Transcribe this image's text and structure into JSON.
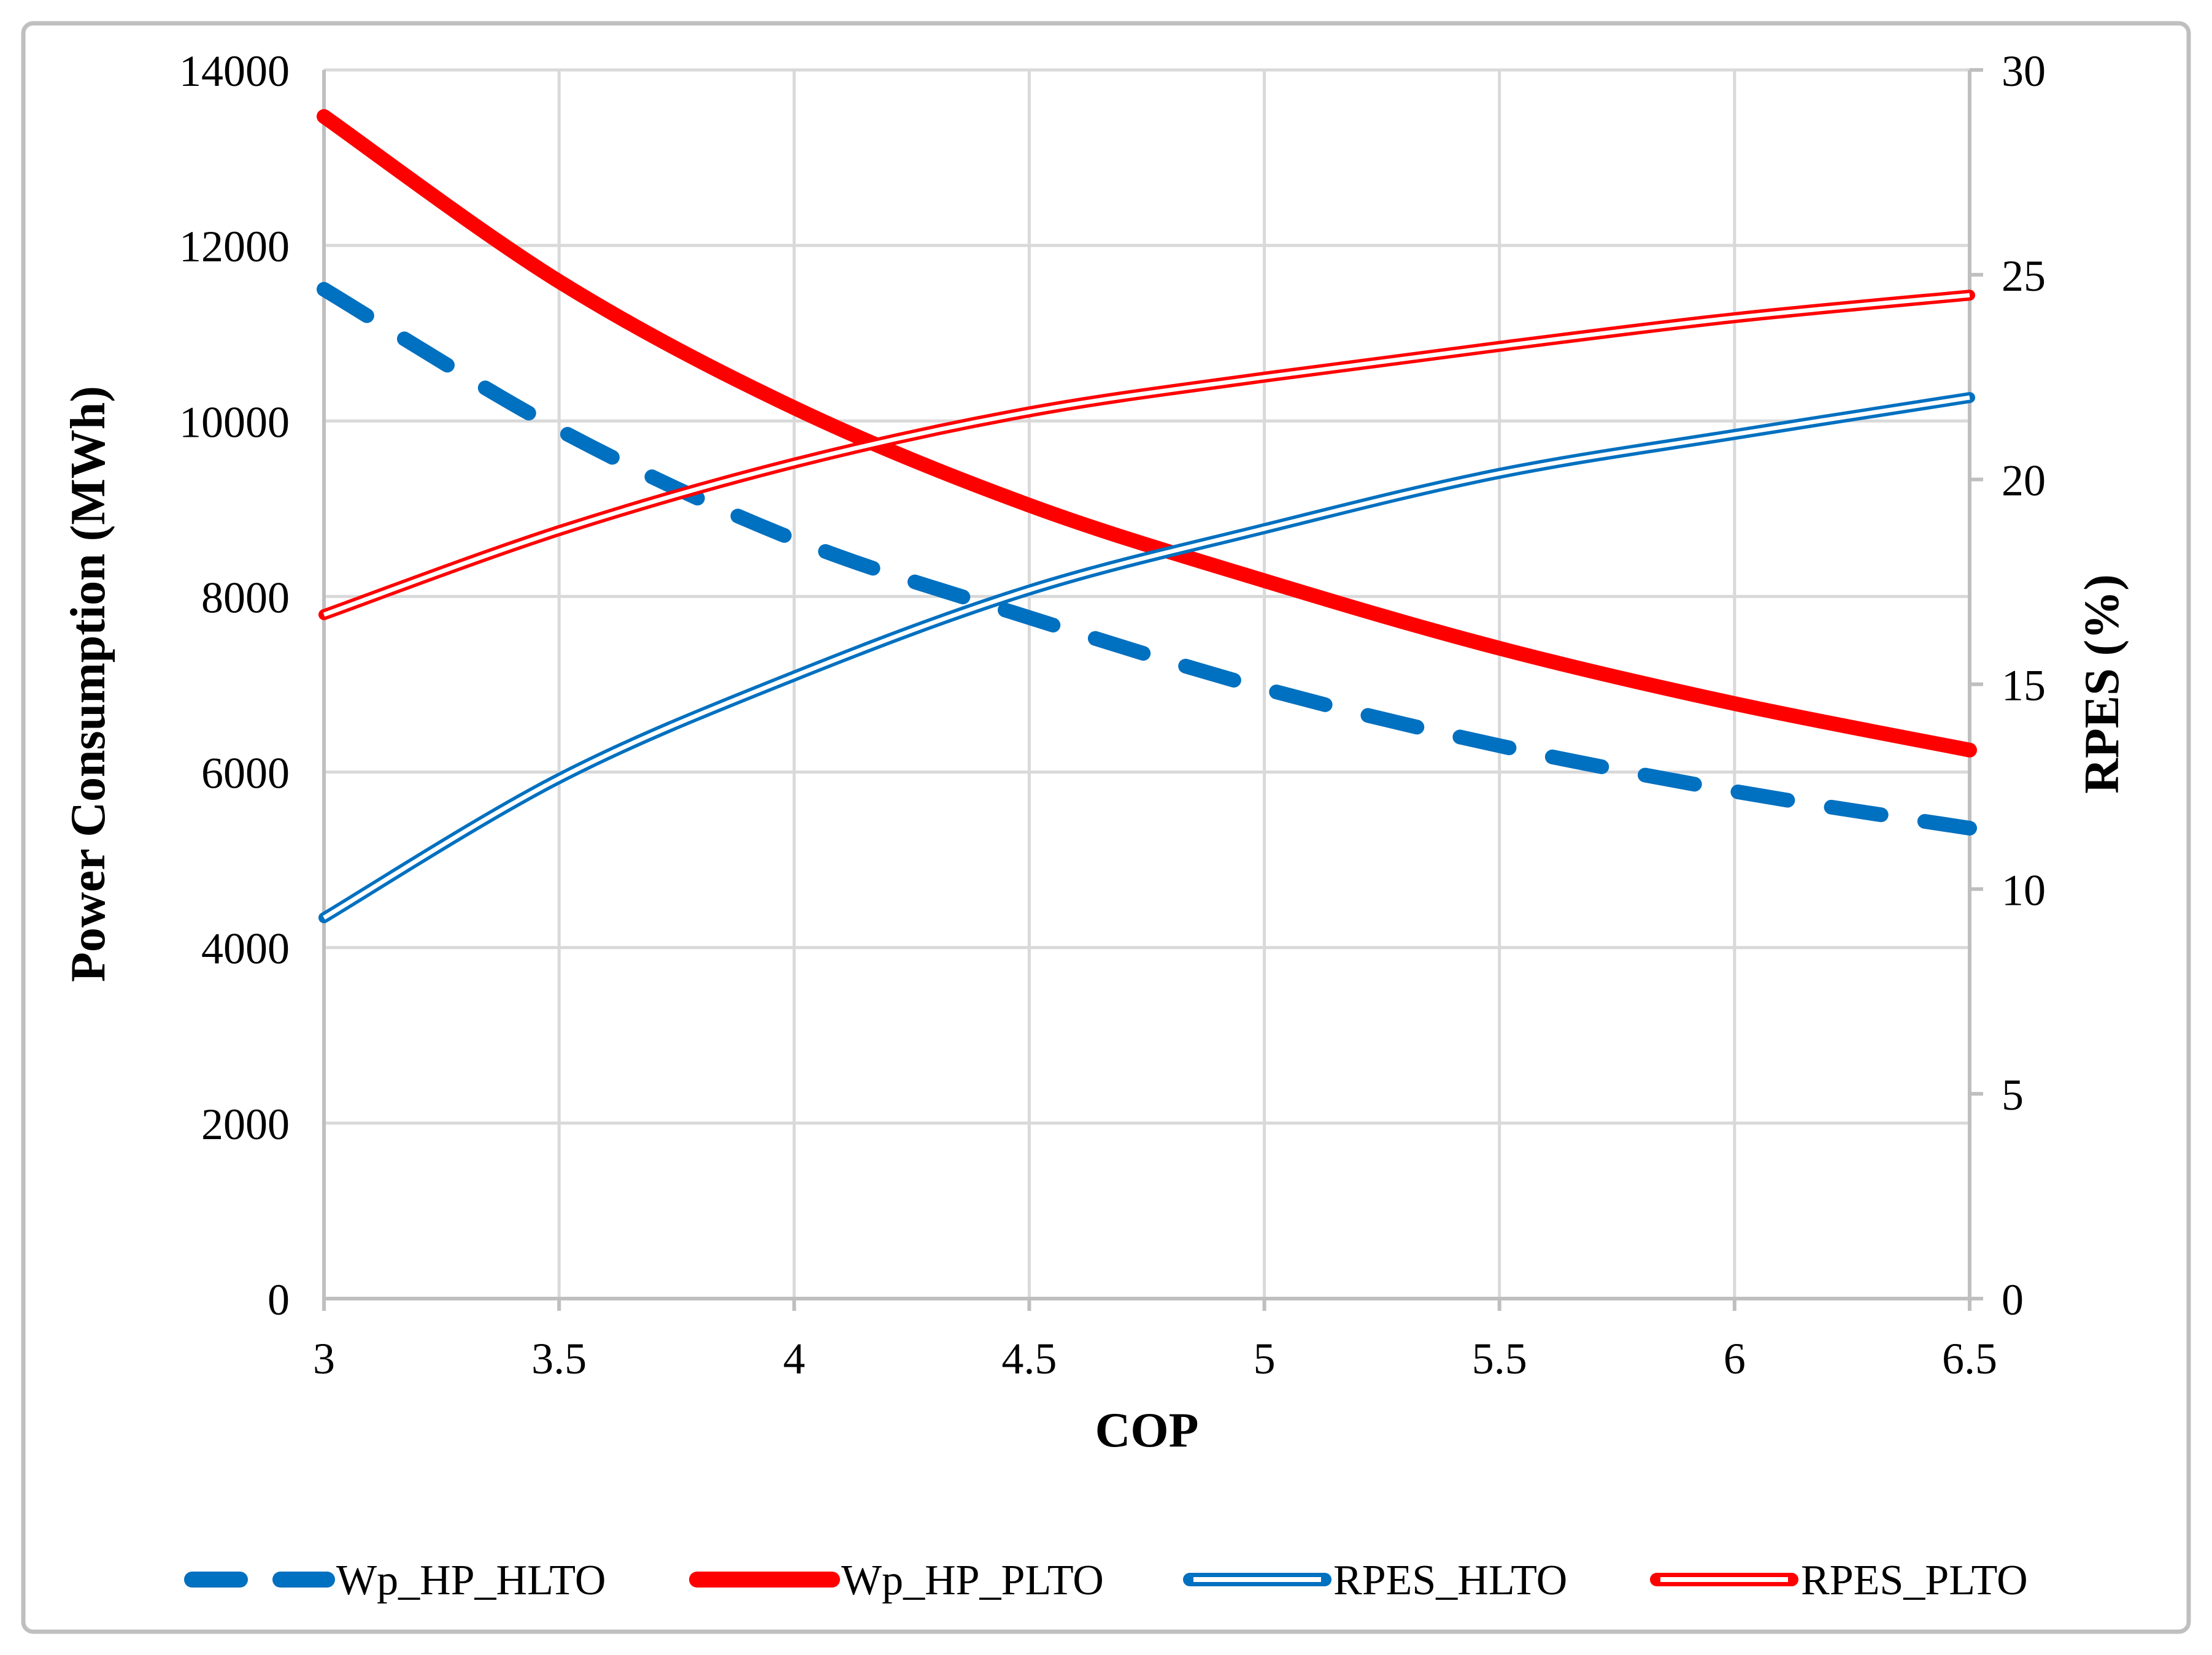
{
  "chart_data": {
    "type": "line",
    "title": "",
    "xlabel": "COP",
    "ylabel_left": "Power Consumption (MWh)",
    "ylabel_right": "RPES (%)",
    "x": [
      3,
      3.5,
      4,
      4.5,
      5,
      5.5,
      6,
      6.5
    ],
    "xticks": [
      "3",
      "3.5",
      "4",
      "4.5",
      "5",
      "5.5",
      "6",
      "6.5"
    ],
    "xlim": [
      3,
      6.5
    ],
    "ylim_left": [
      0,
      14000
    ],
    "yticks_left": [
      "0",
      "2000",
      "4000",
      "6000",
      "8000",
      "10000",
      "12000",
      "14000"
    ],
    "ylim_right": [
      0,
      30
    ],
    "yticks_right": [
      "0",
      "5",
      "10",
      "15",
      "20",
      "25",
      "30"
    ],
    "grid": true,
    "legend_position": "bottom",
    "series": [
      {
        "name": "Wp_HP_HLTO",
        "axis": "left",
        "style": "dashed",
        "color": "#0070C0",
        "values": [
          11500,
          9900,
          8650,
          7760,
          6950,
          6300,
          5780,
          5360
        ]
      },
      {
        "name": "Wp_HP_PLTO",
        "axis": "left",
        "style": "solid",
        "color": "#FF0000",
        "values": [
          13470,
          11590,
          10150,
          9040,
          8180,
          7410,
          6780,
          6250
        ]
      },
      {
        "name": "RPES_HLTO",
        "axis": "right",
        "style": "double",
        "color": "#0070C0",
        "values": [
          9.3,
          12.7,
          15.2,
          17.3,
          18.8,
          20.15,
          21.1,
          22.0
        ]
      },
      {
        "name": "RPES_PLTO",
        "axis": "right",
        "style": "double",
        "color": "#FF0000",
        "values": [
          16.7,
          18.75,
          20.4,
          21.65,
          22.5,
          23.25,
          23.95,
          24.5
        ]
      }
    ],
    "colors": {
      "gridline": "#D9D9D9",
      "axis": "#BFBFBF",
      "border": "#BFBFBF",
      "background": "#FFFFFF",
      "text": "#000000",
      "series_blue": "#0070C0",
      "series_red": "#FF0000"
    }
  }
}
